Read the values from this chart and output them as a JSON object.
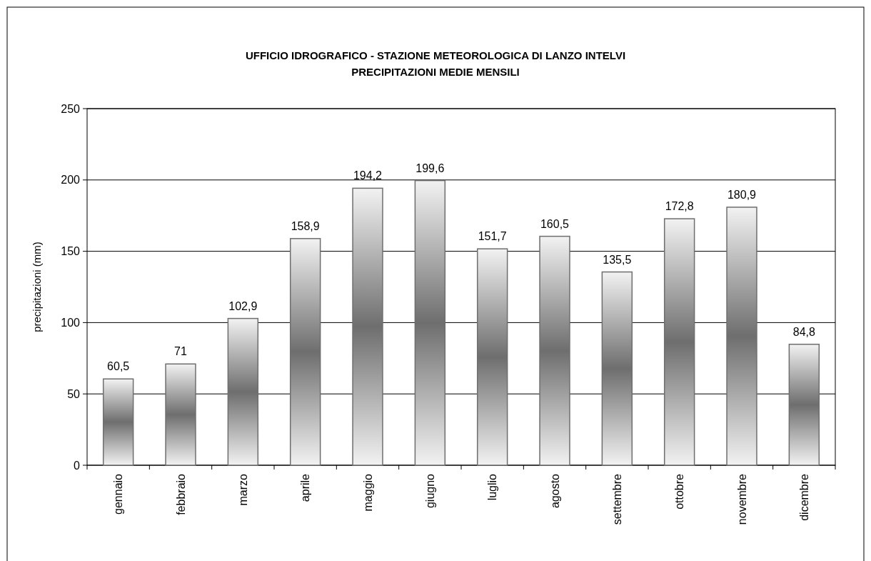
{
  "chart_data": {
    "type": "bar",
    "title": "UFFICIO IDROGRAFICO - STAZIONE METEOROLOGICA DI LANZO INTELVI",
    "subtitle": "PRECIPITAZIONI MEDIE MENSILI",
    "ylabel": "precipitazioni (mm)",
    "categories": [
      "gennaio",
      "febbraio",
      "marzo",
      "aprile",
      "maggio",
      "giugno",
      "luglio",
      "agosto",
      "settembre",
      "ottobre",
      "novembre",
      "dicembre"
    ],
    "values": [
      60.5,
      71,
      102.9,
      158.9,
      194.2,
      199.6,
      151.7,
      160.5,
      135.5,
      172.8,
      180.9,
      84.8
    ],
    "value_labels": [
      "60,5",
      "71",
      "102,9",
      "158,9",
      "194,2",
      "199,6",
      "151,7",
      "160,5",
      "135,5",
      "172,8",
      "180,9",
      "84,8"
    ],
    "color": "#6e6e6e",
    "ylim": [
      0,
      250
    ],
    "yticks": [
      0,
      50,
      100,
      150,
      200,
      250
    ],
    "grid": "y"
  }
}
